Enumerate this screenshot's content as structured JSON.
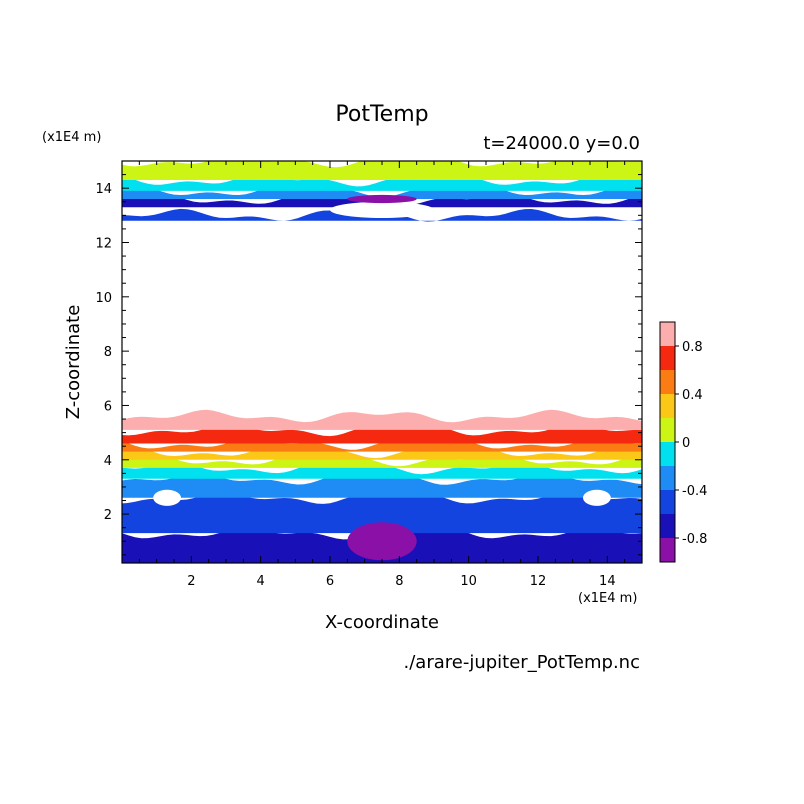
{
  "chart_data": {
    "type": "heatmap",
    "title": "PotTemp",
    "subtitle": "t=24000.0 y=0.0",
    "xlabel": "X-coordinate",
    "ylabel": "Z-coordinate",
    "x_unit": "(x1E4 m)",
    "y_unit": "(x1E4 m)",
    "source_label": "./arare-jupiter_PotTemp.nc",
    "xlim": [
      0,
      15
    ],
    "ylim": [
      0.2,
      15
    ],
    "x_ticks": [
      2,
      4,
      6,
      8,
      10,
      12,
      14
    ],
    "y_ticks": [
      2,
      4,
      6,
      8,
      10,
      12,
      14
    ],
    "grid": false,
    "colorbar": {
      "placement": "right",
      "min": -1.0,
      "max": 1.0,
      "tick_labels": [
        {
          "value": 0.8,
          "label": "0.8"
        },
        {
          "value": 0.4,
          "label": "0.4"
        },
        {
          "value": 0.0,
          "label": "0"
        },
        {
          "value": -0.4,
          "label": "-0.4"
        },
        {
          "value": -0.8,
          "label": "-0.8"
        }
      ],
      "bins": [
        {
          "lo": -1.0,
          "hi": -0.8,
          "color": "#8a10a8"
        },
        {
          "lo": -0.8,
          "hi": -0.6,
          "color": "#1a10b8"
        },
        {
          "lo": -0.6,
          "hi": -0.4,
          "color": "#1444e0"
        },
        {
          "lo": -0.4,
          "hi": -0.2,
          "color": "#1e8cf4"
        },
        {
          "lo": -0.2,
          "hi": 0.0,
          "color": "#00e0ee"
        },
        {
          "lo": 0.0,
          "hi": 0.2,
          "color": "#ccf414"
        },
        {
          "lo": 0.2,
          "hi": 0.4,
          "color": "#fcc818"
        },
        {
          "lo": 0.4,
          "hi": 0.6,
          "color": "#fc7c14"
        },
        {
          "lo": 0.6,
          "hi": 0.8,
          "color": "#f52810"
        },
        {
          "lo": 0.8,
          "hi": 1.0,
          "color": "#fcaeae"
        }
      ]
    },
    "layers": [
      {
        "z_bottom": 0.2,
        "z_top": 1.3,
        "color": "#1a10b8"
      },
      {
        "z_bottom": 1.3,
        "z_top": 2.6,
        "color": "#1444e0"
      },
      {
        "z_bottom": 2.6,
        "z_top": 3.3,
        "color": "#1e8cf4"
      },
      {
        "z_bottom": 3.3,
        "z_top": 3.7,
        "color": "#00e0ee"
      },
      {
        "z_bottom": 3.7,
        "z_top": 4.0,
        "color": "#ccf414"
      },
      {
        "z_bottom": 4.0,
        "z_top": 4.3,
        "color": "#fcc818"
      },
      {
        "z_bottom": 4.3,
        "z_top": 4.6,
        "color": "#fc7c14"
      },
      {
        "z_bottom": 4.6,
        "z_top": 5.1,
        "color": "#f52810"
      },
      {
        "z_bottom": 5.1,
        "z_top": 5.6,
        "color": "#fcaeae"
      },
      {
        "z_bottom": 12.8,
        "z_top": 13.0,
        "color": "#1444e0"
      },
      {
        "z_bottom": 13.3,
        "z_top": 13.6,
        "color": "#1a10b8"
      },
      {
        "z_bottom": 13.6,
        "z_top": 13.9,
        "color": "#1e8cf4"
      },
      {
        "z_bottom": 13.9,
        "z_top": 14.3,
        "color": "#00e0ee"
      },
      {
        "z_bottom": 14.3,
        "z_top": 15.0,
        "color": "#ccf414"
      }
    ],
    "features": [
      {
        "x": 7.5,
        "z": 1.0,
        "rx": 1.0,
        "rz": 0.7,
        "color": "#8a10a8"
      },
      {
        "x": 1.3,
        "z": 2.6,
        "rx": 0.4,
        "rz": 0.3,
        "color": "#ffffff"
      },
      {
        "x": 13.7,
        "z": 2.6,
        "rx": 0.4,
        "rz": 0.3,
        "color": "#ffffff"
      },
      {
        "x": 7.5,
        "z": 13.2,
        "rx": 1.5,
        "rz": 0.3,
        "color": "#ffffff"
      },
      {
        "x": 7.5,
        "z": 13.6,
        "rx": 1.0,
        "rz": 0.15,
        "color": "#8a10a8"
      }
    ]
  }
}
